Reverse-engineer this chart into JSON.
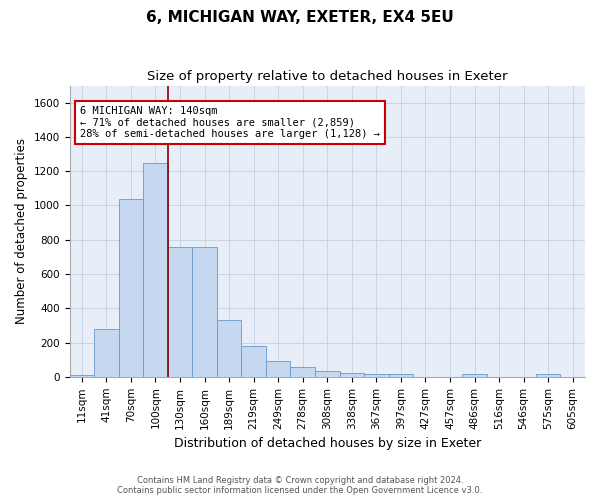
{
  "title": "6, MICHIGAN WAY, EXETER, EX4 5EU",
  "subtitle": "Size of property relative to detached houses in Exeter",
  "xlabel": "Distribution of detached houses by size in Exeter",
  "ylabel": "Number of detached properties",
  "footer_line1": "Contains HM Land Registry data © Crown copyright and database right 2024.",
  "footer_line2": "Contains public sector information licensed under the Open Government Licence v3.0.",
  "bar_labels": [
    "11sqm",
    "41sqm",
    "70sqm",
    "100sqm",
    "130sqm",
    "160sqm",
    "189sqm",
    "219sqm",
    "249sqm",
    "278sqm",
    "308sqm",
    "338sqm",
    "367sqm",
    "397sqm",
    "427sqm",
    "457sqm",
    "486sqm",
    "516sqm",
    "546sqm",
    "575sqm",
    "605sqm"
  ],
  "bar_values": [
    10,
    280,
    1035,
    1250,
    760,
    760,
    330,
    180,
    90,
    60,
    35,
    25,
    15,
    15,
    0,
    0,
    15,
    0,
    0,
    15,
    0
  ],
  "bar_color": "#c5d8f0",
  "bar_edge_color": "#6699cc",
  "bar_width": 1.0,
  "ylim": [
    0,
    1700
  ],
  "yticks": [
    0,
    200,
    400,
    600,
    800,
    1000,
    1200,
    1400,
    1600
  ],
  "grid_color": "#c8d4e8",
  "bg_color": "#e8eef8",
  "annotation_text": "6 MICHIGAN WAY: 140sqm\n← 71% of detached houses are smaller (2,859)\n28% of semi-detached houses are larger (1,128) →",
  "vline_x": 3.5,
  "vline_color": "#8b0000",
  "box_color": "#cc0000",
  "title_fontsize": 11,
  "subtitle_fontsize": 9.5,
  "xlabel_fontsize": 9,
  "ylabel_fontsize": 8.5,
  "tick_fontsize": 7.5,
  "annot_fontsize": 7.5
}
